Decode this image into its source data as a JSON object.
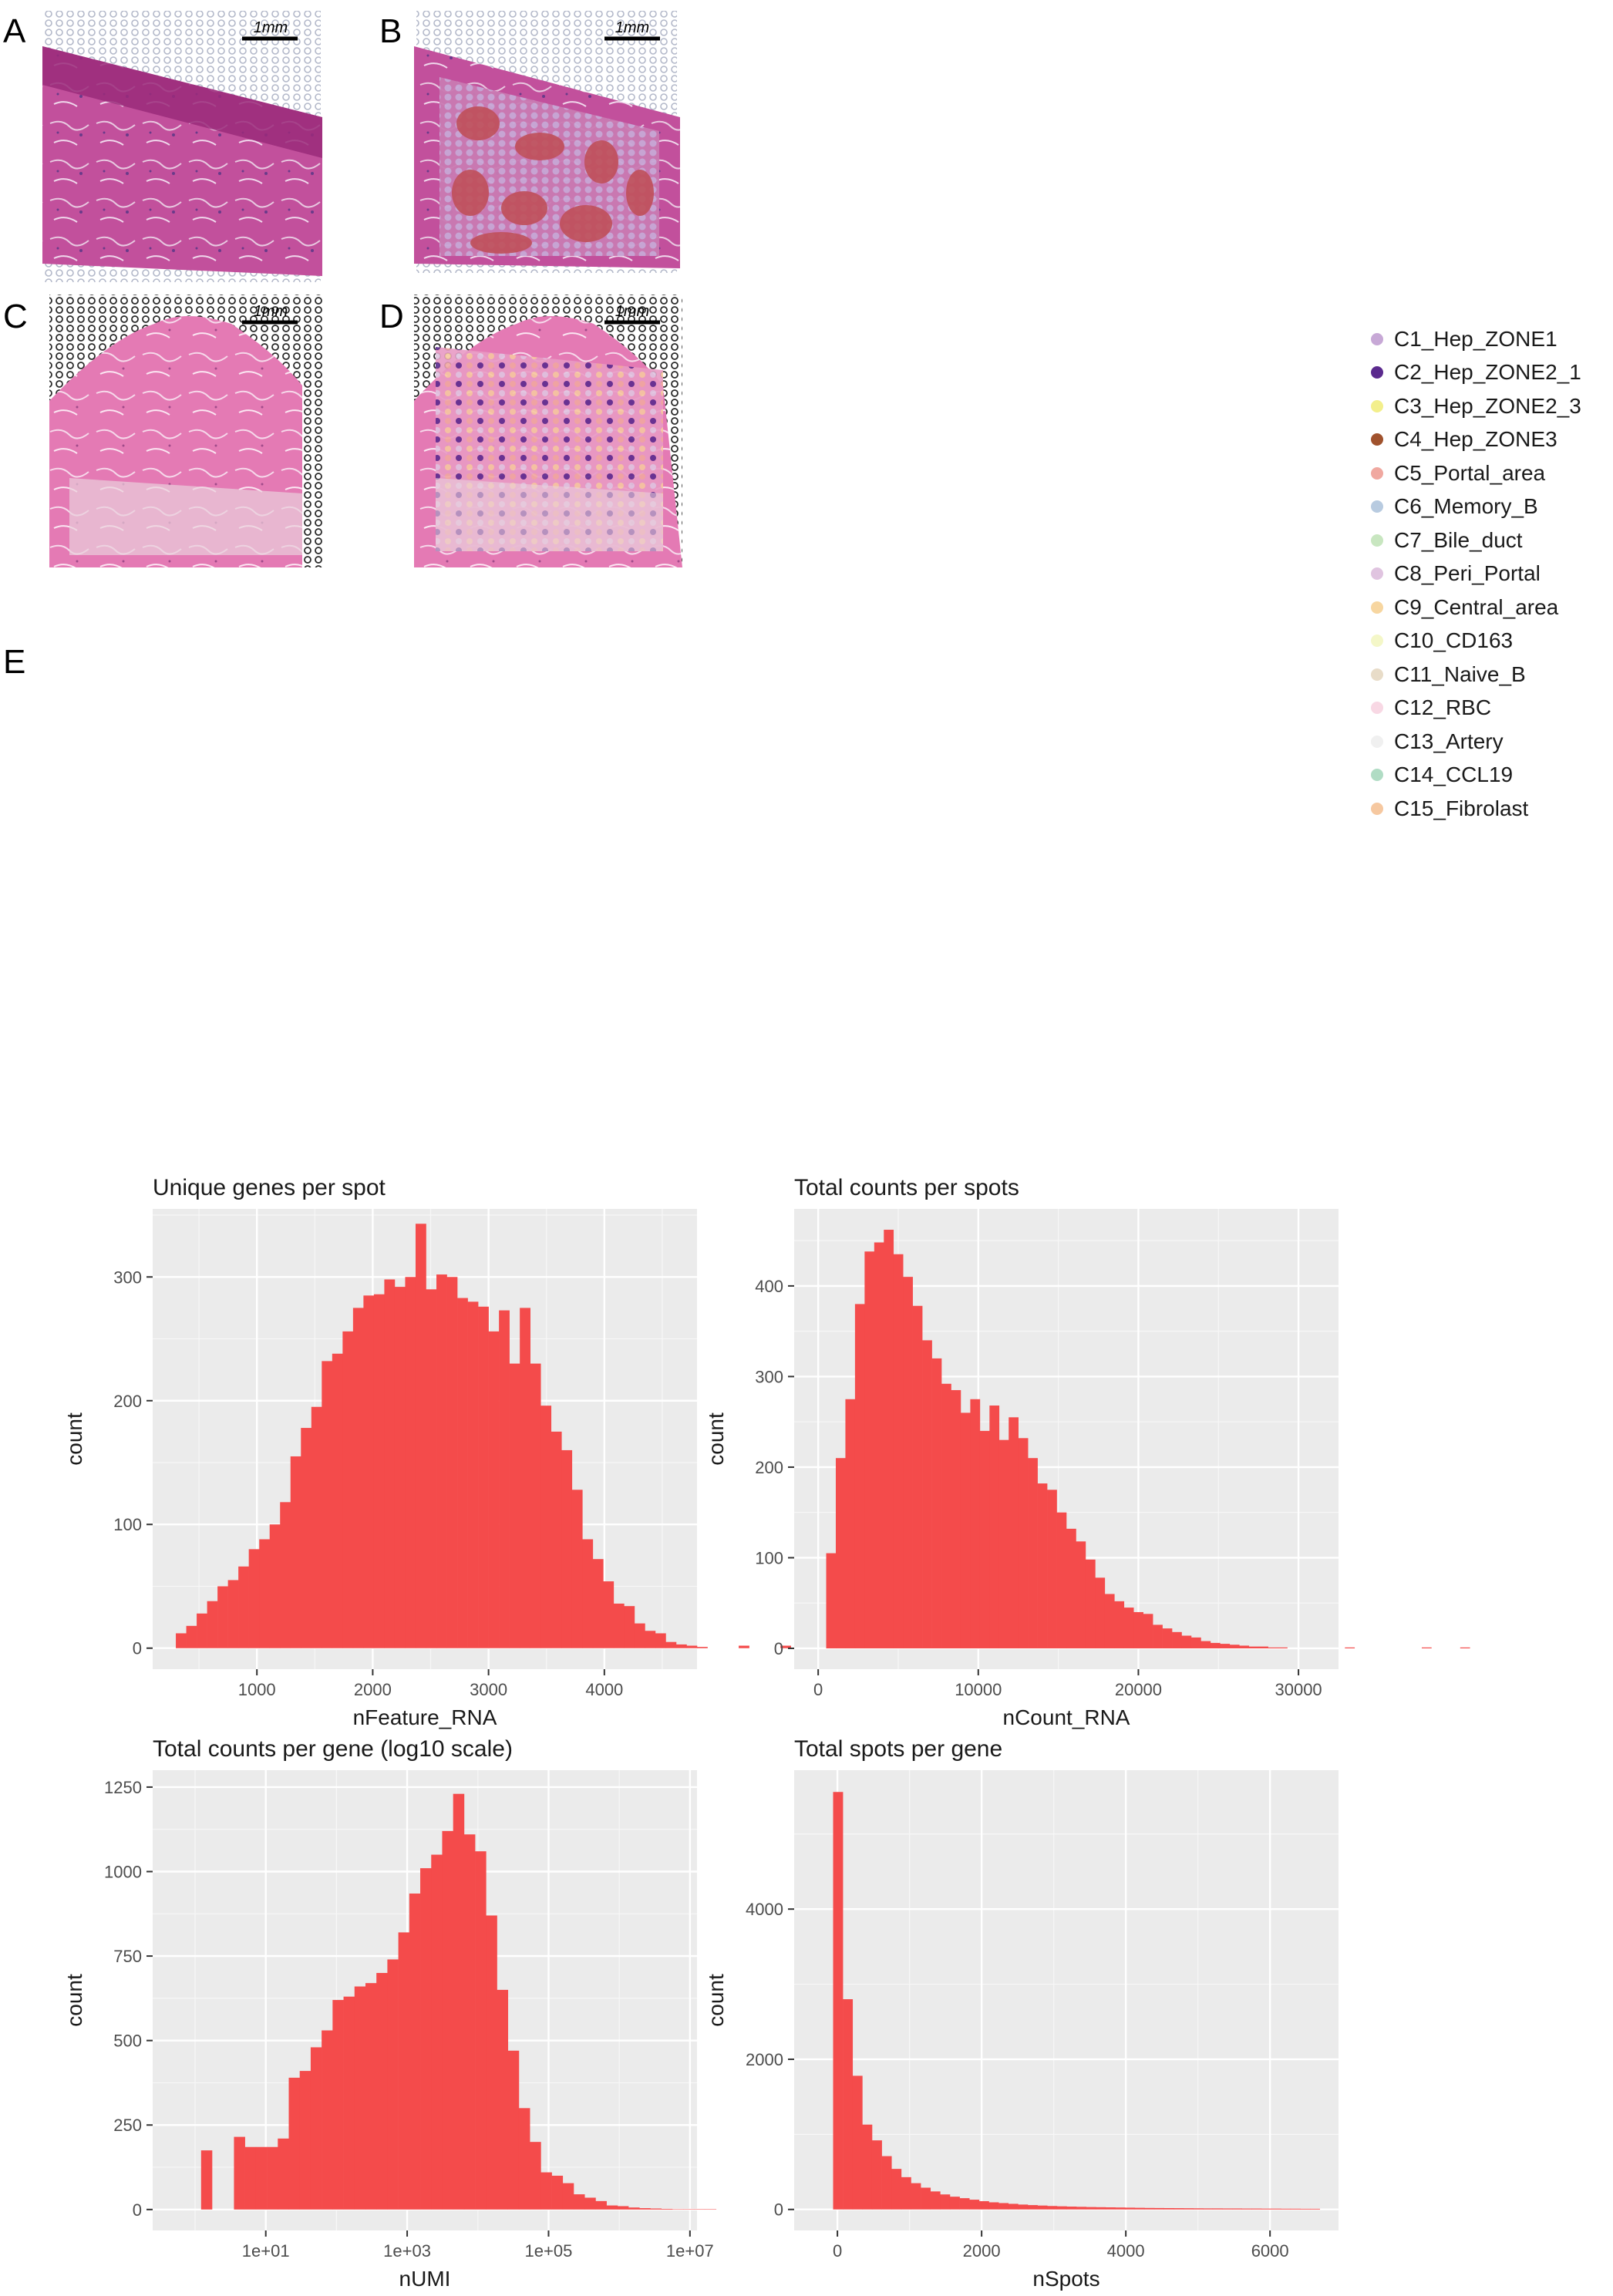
{
  "panels": {
    "A": {
      "letter": "A",
      "scale_label": "1mm"
    },
    "B": {
      "letter": "B",
      "scale_label": "1mm"
    },
    "C": {
      "letter": "C",
      "scale_label": "1mm"
    },
    "D": {
      "letter": "D",
      "scale_label": "1mm"
    },
    "E": {
      "letter": "E"
    }
  },
  "legend": {
    "items": [
      {
        "label": "C1_Hep_ZONE1",
        "color": "#c7a8d6"
      },
      {
        "label": "C2_Hep_ZONE2_1",
        "color": "#5b2a8e"
      },
      {
        "label": "C3_Hep_ZONE2_3",
        "color": "#f3ef8c"
      },
      {
        "label": "C4_Hep_ZONE3",
        "color": "#a0522d"
      },
      {
        "label": "C5_Portal_area",
        "color": "#f0a8a0"
      },
      {
        "label": "C6_Memory_B",
        "color": "#b8cbe0"
      },
      {
        "label": "C7_Bile_duct",
        "color": "#c8e6c0"
      },
      {
        "label": "C8_Peri_Portal",
        "color": "#e0c4e0"
      },
      {
        "label": "C9_Central_area",
        "color": "#f7d6a0"
      },
      {
        "label": "C10_CD163",
        "color": "#f4f7c8"
      },
      {
        "label": "C11_Naive_B",
        "color": "#e8dcc8"
      },
      {
        "label": "C12_RBC",
        "color": "#f8d8e4"
      },
      {
        "label": "C13_Artery",
        "color": "#f0f0f0"
      },
      {
        "label": "C14_CCL19",
        "color": "#b0dcc4"
      },
      {
        "label": "C15_Fibrolast",
        "color": "#f6c8a0"
      }
    ]
  },
  "chart_data": [
    {
      "type": "bar",
      "title": "Unique genes per spot",
      "xlabel": "nFeature_RNA",
      "ylabel": "count",
      "xlim": [
        100,
        4800
      ],
      "ylim": [
        -17,
        355
      ],
      "xticks": [
        1000,
        2000,
        3000,
        4000
      ],
      "xtick_labels": [
        "1000",
        "2000",
        "3000",
        "4000"
      ],
      "yticks": [
        0,
        100,
        200,
        300
      ],
      "ytick_labels": [
        "0",
        "100",
        "200",
        "300"
      ],
      "bin_width": 90,
      "bin_start": 300,
      "values": [
        12,
        18,
        28,
        38,
        50,
        55,
        66,
        80,
        88,
        100,
        118,
        155,
        178,
        195,
        232,
        238,
        256,
        275,
        285,
        286,
        298,
        292,
        300,
        343,
        290,
        302,
        300,
        283,
        280,
        276,
        256,
        273,
        230,
        275,
        230,
        196,
        175,
        160,
        128,
        88,
        72,
        54,
        36,
        34,
        20,
        14,
        12,
        5,
        3,
        2,
        1,
        0,
        0,
        0,
        2,
        0,
        0,
        0,
        2
      ]
    },
    {
      "type": "bar",
      "title": "Total counts per spots",
      "xlabel": "nCount_RNA",
      "ylabel": "count",
      "xlim": [
        -1500,
        32500
      ],
      "ylim": [
        -23,
        485
      ],
      "xticks": [
        0,
        10000,
        20000,
        30000
      ],
      "xtick_labels": [
        "0",
        "10000",
        "20000",
        "30000"
      ],
      "yticks": [
        0,
        100,
        200,
        300,
        400
      ],
      "ytick_labels": [
        "0",
        "100",
        "200",
        "300",
        "400"
      ],
      "bin_width": 600,
      "bin_start": 500,
      "values": [
        105,
        210,
        275,
        380,
        438,
        448,
        462,
        435,
        410,
        378,
        340,
        320,
        292,
        285,
        260,
        275,
        240,
        268,
        230,
        255,
        232,
        210,
        182,
        175,
        150,
        132,
        118,
        98,
        78,
        60,
        52,
        45,
        40,
        38,
        26,
        22,
        18,
        14,
        12,
        8,
        6,
        5,
        4,
        3,
        2,
        2,
        1,
        1,
        0,
        0,
        0,
        0,
        0,
        0,
        1,
        0,
        0,
        0,
        0,
        0,
        0,
        0,
        1,
        0,
        0,
        0,
        1
      ]
    },
    {
      "type": "bar",
      "title": "Total counts per gene (log10 scale)",
      "xlabel": "nUMI",
      "ylabel": "count",
      "x_scale": "log10",
      "xlim": [
        -0.6,
        7.1
      ],
      "ylim": [
        -62,
        1300
      ],
      "xticks": [
        1,
        3,
        5,
        7
      ],
      "xtick_labels": [
        "1e+01",
        "1e+03",
        "1e+05",
        "1e+07"
      ],
      "yticks": [
        0,
        250,
        500,
        750,
        1000,
        1250
      ],
      "ytick_labels": [
        "0",
        "250",
        "500",
        "750",
        "1000",
        "1250"
      ],
      "bin_width": 0.155,
      "bin_start": -0.07,
      "values": [
        0,
        175,
        0,
        0,
        215,
        185,
        185,
        185,
        210,
        390,
        410,
        480,
        530,
        620,
        630,
        660,
        670,
        700,
        740,
        820,
        935,
        1010,
        1050,
        1120,
        1230,
        1110,
        1060,
        870,
        650,
        470,
        300,
        200,
        110,
        100,
        78,
        45,
        35,
        25,
        12,
        10,
        6,
        4,
        3,
        2,
        1,
        1,
        1,
        1
      ]
    },
    {
      "type": "bar",
      "title": "Total spots per gene",
      "xlabel": "nSpots",
      "ylabel": "count",
      "xlim": [
        -600,
        6950
      ],
      "ylim": [
        -280,
        5850
      ],
      "xticks": [
        0,
        2000,
        4000,
        6000
      ],
      "xtick_labels": [
        "0",
        "2000",
        "4000",
        "6000"
      ],
      "yticks": [
        0,
        2000,
        4000
      ],
      "ytick_labels": [
        "0",
        "2000",
        "4000"
      ],
      "bin_width": 135,
      "bin_start": -60,
      "values": [
        5560,
        2800,
        1780,
        1130,
        920,
        710,
        540,
        430,
        350,
        290,
        240,
        200,
        170,
        150,
        130,
        110,
        95,
        85,
        75,
        65,
        58,
        52,
        46,
        42,
        38,
        35,
        32,
        30,
        28,
        26,
        24,
        22,
        20,
        19,
        18,
        17,
        16,
        15,
        14,
        14,
        13,
        13,
        12,
        12,
        11,
        11,
        10,
        10,
        9,
        9
      ]
    }
  ]
}
